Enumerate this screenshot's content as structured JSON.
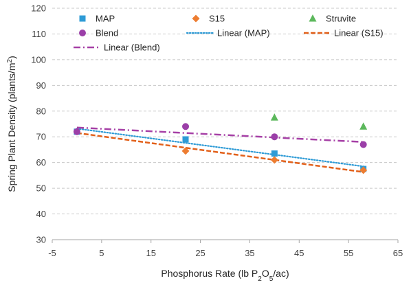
{
  "chart_data": {
    "type": "scatter",
    "xlabel_parts": [
      "Phosphorus Rate (lb P",
      "2",
      "O",
      "5",
      "/ac)"
    ],
    "ylabel_parts": [
      "Spring Plant Density (plants/m",
      "2",
      ")"
    ],
    "xlim": [
      -5,
      65
    ],
    "ylim": [
      30,
      120
    ],
    "x_ticks": [
      -5,
      5,
      15,
      25,
      35,
      45,
      55,
      65
    ],
    "y_ticks": [
      30,
      40,
      50,
      60,
      70,
      80,
      90,
      100,
      110,
      120
    ],
    "grid": "horizontal dashed",
    "legend_position": "top",
    "series": [
      {
        "name": "MAP",
        "marker": "square",
        "color": "#2e9bd6",
        "points": [
          [
            0,
            72
          ],
          [
            22,
            69
          ],
          [
            40,
            63.5
          ],
          [
            58,
            57.5
          ]
        ]
      },
      {
        "name": "S15",
        "marker": "diamond",
        "color": "#ed7d31",
        "points": [
          [
            22,
            64.5
          ],
          [
            40,
            61
          ],
          [
            58,
            57
          ]
        ]
      },
      {
        "name": "Struvite",
        "marker": "triangle",
        "color": "#5cb85c",
        "points": [
          [
            40,
            77.5
          ],
          [
            58,
            74
          ]
        ]
      },
      {
        "name": "Blend",
        "marker": "circle",
        "color": "#9b3fa8",
        "points": [
          [
            0,
            72
          ],
          [
            22,
            74
          ],
          [
            40,
            70
          ],
          [
            58,
            67
          ]
        ]
      }
    ],
    "trendlines": [
      {
        "name": "Linear (MAP)",
        "style": "dotted",
        "color": "#2e9bd6",
        "from": [
          0,
          73.2
        ],
        "to": [
          58,
          58.5
        ]
      },
      {
        "name": "Linear (S15)",
        "style": "dashed",
        "color": "#e2601a",
        "from": [
          0,
          71.5
        ],
        "to": [
          58,
          56.3
        ]
      },
      {
        "name": "Linear (Blend)",
        "style": "dashdot",
        "color": "#a640a6",
        "from": [
          0,
          73.6
        ],
        "to": [
          58,
          68
        ]
      }
    ]
  }
}
